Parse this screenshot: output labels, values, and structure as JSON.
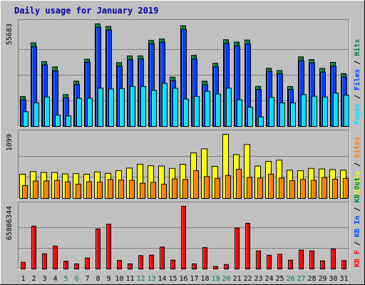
{
  "title": "Daily usage for January 2019",
  "colors": {
    "background": "#c0c0c0",
    "title": "#0000a0",
    "hits": "#008040",
    "files": "#0040ff",
    "pages": "#00e0ff",
    "visits": "#ffff00",
    "sites": "#ff8000",
    "kbin": "#0040ff",
    "kbout": "#008040",
    "kbf": "#ff0000",
    "weekend": "#00805c",
    "weekday": "#000000"
  },
  "chart_data": [
    {
      "type": "bar",
      "panel": "hits-files-pages",
      "max_label": "55683",
      "ylim": [
        0,
        55683
      ],
      "legend": [
        {
          "text": "Pages",
          "color": "#00e0ff"
        },
        {
          "text": "Files",
          "color": "#0040ff"
        },
        {
          "text": "Hits",
          "color": "#008040"
        }
      ],
      "x": [
        1,
        2,
        3,
        4,
        5,
        6,
        7,
        8,
        9,
        10,
        11,
        12,
        13,
        14,
        15,
        16,
        17,
        18,
        19,
        20,
        21,
        22,
        23,
        24,
        25,
        26,
        27,
        28,
        29,
        30,
        31
      ],
      "series": [
        {
          "name": "Hits",
          "values": [
            16300,
            45400,
            35200,
            32300,
            17300,
            24600,
            36500,
            55700,
            54300,
            34700,
            38300,
            38300,
            46700,
            47500,
            26800,
            54700,
            38600,
            24600,
            34300,
            47100,
            45800,
            46900,
            21800,
            31600,
            30400,
            21700,
            37800,
            36300,
            31500,
            34800,
            28700
          ]
        },
        {
          "name": "Files",
          "values": [
            15200,
            44000,
            34200,
            30900,
            16300,
            23600,
            35600,
            54600,
            53100,
            33600,
            37000,
            37400,
            45700,
            46500,
            25700,
            53500,
            37400,
            23400,
            33200,
            45900,
            44500,
            45500,
            20900,
            30700,
            29400,
            20800,
            36500,
            35300,
            30300,
            33500,
            27700
          ]
        },
        {
          "name": "Pages",
          "values": [
            8000,
            12800,
            16000,
            6200,
            5700,
            15300,
            15300,
            20800,
            20400,
            20600,
            21700,
            21700,
            19600,
            23400,
            20700,
            14900,
            16300,
            19100,
            17600,
            20800,
            14500,
            10500,
            5200,
            15800,
            12800,
            12800,
            17300,
            16400,
            16000,
            18100,
            17000
          ]
        }
      ]
    },
    {
      "type": "bar",
      "panel": "visits-sites",
      "max_label": "1099",
      "ylim": [
        0,
        1099
      ],
      "legend": [
        {
          "text": "Visits",
          "color": "#ffff00"
        },
        {
          "text": "Sites",
          "color": "#ff8000"
        }
      ],
      "x": [
        1,
        2,
        3,
        4,
        5,
        6,
        7,
        8,
        9,
        10,
        11,
        12,
        13,
        14,
        15,
        16,
        17,
        18,
        19,
        20,
        21,
        22,
        23,
        24,
        25,
        26,
        27,
        28,
        29,
        30,
        31
      ],
      "series": [
        {
          "name": "Visits",
          "values": [
            415,
            460,
            445,
            445,
            420,
            425,
            415,
            455,
            430,
            475,
            520,
            585,
            560,
            555,
            515,
            585,
            780,
            850,
            550,
            1099,
            750,
            925,
            555,
            635,
            655,
            485,
            475,
            515,
            505,
            495,
            485
          ]
        },
        {
          "name": "Sites",
          "values": [
            220,
            300,
            300,
            310,
            285,
            245,
            285,
            280,
            325,
            315,
            310,
            260,
            275,
            245,
            335,
            325,
            475,
            375,
            345,
            395,
            500,
            360,
            350,
            415,
            350,
            305,
            325,
            310,
            360,
            330,
            345
          ]
        }
      ]
    },
    {
      "type": "bar",
      "panel": "kbytes",
      "max_label": "65806344",
      "ylim": [
        0,
        65806344
      ],
      "legend": [
        {
          "text": "KB F",
          "color": "#ff0000"
        },
        {
          "text": "KB In",
          "color": "#0040ff"
        },
        {
          "text": "KB Out",
          "color": "#008040"
        }
      ],
      "x": [
        1,
        2,
        3,
        4,
        5,
        6,
        7,
        8,
        9,
        10,
        11,
        12,
        13,
        14,
        15,
        16,
        17,
        18,
        19,
        20,
        21,
        22,
        23,
        24,
        25,
        26,
        27,
        28,
        29,
        30,
        31
      ],
      "series": [
        {
          "name": "KB F",
          "values": [
            7000000,
            45000000,
            16000000,
            24000000,
            8200000,
            5400000,
            11500000,
            42000000,
            47000000,
            9000000,
            5400000,
            14000000,
            14500000,
            23000000,
            9300000,
            65806344,
            5400000,
            22500000,
            2700000,
            4700000,
            43000000,
            48000000,
            19000000,
            14400000,
            15400000,
            9300000,
            19800000,
            19000000,
            8500000,
            21000000,
            8900000
          ]
        }
      ]
    }
  ],
  "x_labels": [
    {
      "text": "1",
      "weekend": false
    },
    {
      "text": "2",
      "weekend": false
    },
    {
      "text": "3",
      "weekend": false
    },
    {
      "text": "4",
      "weekend": false
    },
    {
      "text": "5",
      "weekend": true
    },
    {
      "text": "6",
      "weekend": true
    },
    {
      "text": "7",
      "weekend": false
    },
    {
      "text": "8",
      "weekend": false
    },
    {
      "text": "9",
      "weekend": false
    },
    {
      "text": "10",
      "weekend": false
    },
    {
      "text": "11",
      "weekend": false
    },
    {
      "text": "12",
      "weekend": true
    },
    {
      "text": "13",
      "weekend": true
    },
    {
      "text": "14",
      "weekend": false
    },
    {
      "text": "15",
      "weekend": false
    },
    {
      "text": "16",
      "weekend": false
    },
    {
      "text": "17",
      "weekend": false
    },
    {
      "text": "18",
      "weekend": false
    },
    {
      "text": "19",
      "weekend": true
    },
    {
      "text": "20",
      "weekend": true
    },
    {
      "text": "21",
      "weekend": false
    },
    {
      "text": "22",
      "weekend": false
    },
    {
      "text": "23",
      "weekend": false
    },
    {
      "text": "24",
      "weekend": false
    },
    {
      "text": "25",
      "weekend": false
    },
    {
      "text": "26",
      "weekend": true
    },
    {
      "text": "27",
      "weekend": true
    },
    {
      "text": "28",
      "weekend": false
    },
    {
      "text": "29",
      "weekend": false
    },
    {
      "text": "30",
      "weekend": false
    },
    {
      "text": "31",
      "weekend": false
    }
  ]
}
